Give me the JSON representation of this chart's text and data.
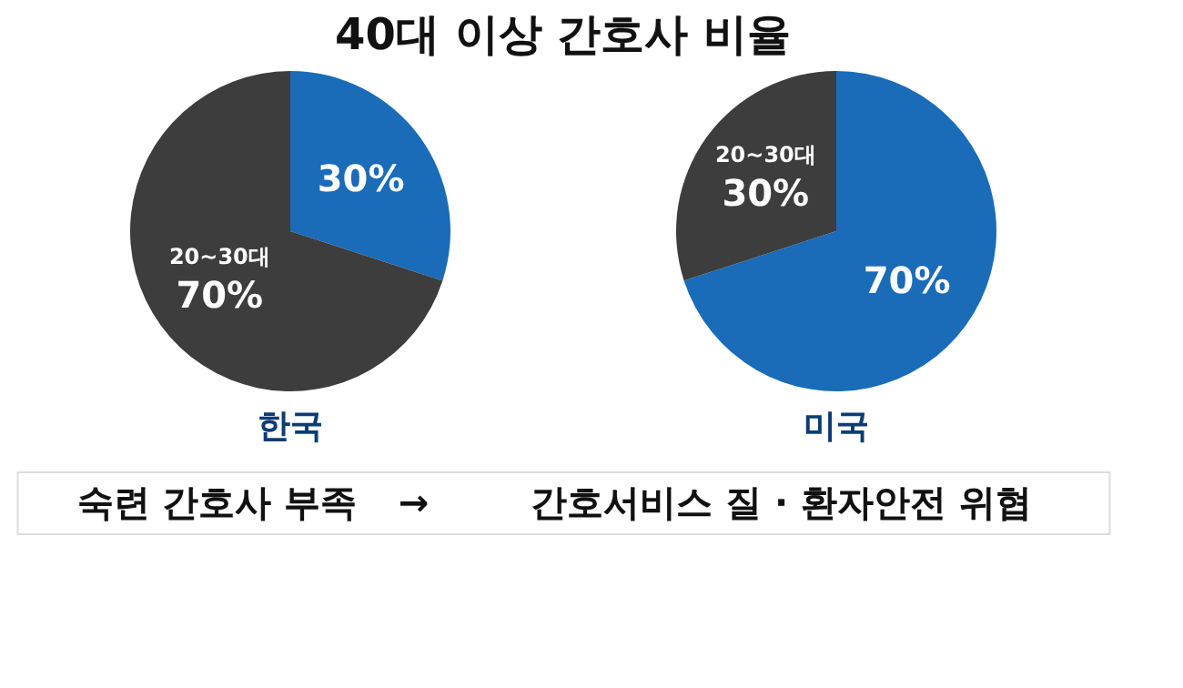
{
  "chart_data": [
    {
      "type": "other",
      "title": "40대 이상 간호사 비율",
      "annotations": [
        "숙련 간호사 부족",
        "→",
        "간호서비스 질 · 환자안전 위협"
      ]
    },
    {
      "type": "pie",
      "title": "한국",
      "categories": [
        null,
        "20~30대"
      ],
      "values": [
        30,
        70
      ],
      "colors": [
        "#1a6bb8",
        "#3d3d3d"
      ],
      "value_labels": [
        "30%",
        "70%"
      ]
    },
    {
      "type": "pie",
      "title": "미국",
      "categories": [
        null,
        "20~30대"
      ],
      "values": [
        70,
        30
      ],
      "colors": [
        "#1a6bb8",
        "#3d3d3d"
      ],
      "value_labels": [
        "70%",
        "30%"
      ]
    }
  ]
}
